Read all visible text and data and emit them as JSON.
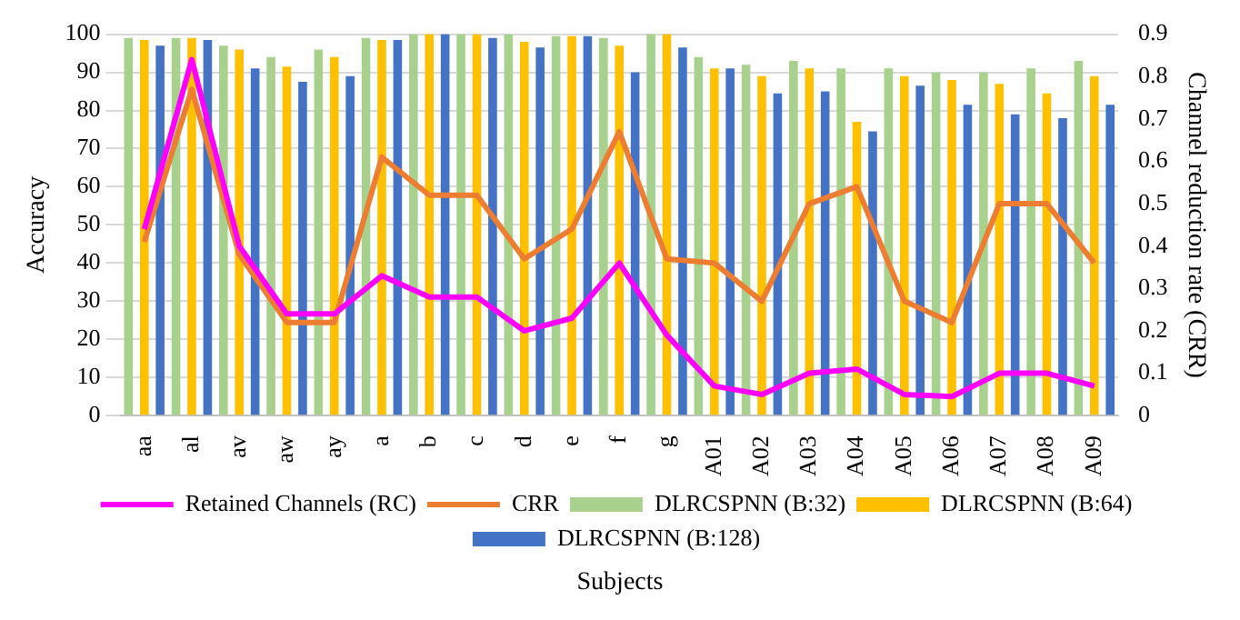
{
  "chart_data": {
    "type": "bar",
    "xlabel": "Subjects",
    "ylabel": "Accuracy",
    "y2label": "Channel reduction rate (CRR)",
    "categories": [
      "aa",
      "al",
      "av",
      "aw",
      "ay",
      "a",
      "b",
      "c",
      "d",
      "e",
      "f",
      "g",
      "A01",
      "A02",
      "A03",
      "A04",
      "A05",
      "A06",
      "A07",
      "A08",
      "A09"
    ],
    "series": [
      {
        "name": "DLRCSPNN (B:32)",
        "color": "#a9d18e",
        "values": [
          99,
          99,
          97,
          94,
          96,
          99,
          100,
          100,
          100,
          99.5,
          99,
          100,
          94,
          92,
          93,
          91,
          91,
          90,
          90,
          91,
          93
        ]
      },
      {
        "name": "DLRCSPNN (B:64)",
        "color": "#ffc000",
        "values": [
          98.5,
          99,
          96,
          91.5,
          94,
          98.5,
          100,
          100,
          98,
          99.5,
          97,
          100,
          91,
          89,
          91,
          77,
          89,
          88,
          87,
          84.5,
          89
        ]
      },
      {
        "name": "DLRCSPNN (B:128)",
        "color": "#4472c4",
        "values": [
          97,
          98.5,
          91,
          87.5,
          89,
          98.5,
          100,
          99,
          96.5,
          99.5,
          90,
          96.5,
          91,
          84.5,
          85,
          74.5,
          86.5,
          81.5,
          79,
          78,
          81.5
        ]
      },
      {
        "name": "Retained Channels (RC)",
        "type": "line",
        "axis": "y2",
        "color": "#ff00ff",
        "values": [
          0.44,
          0.84,
          0.4,
          0.24,
          0.24,
          0.33,
          0.28,
          0.28,
          0.2,
          0.23,
          0.36,
          0.19,
          0.07,
          0.05,
          0.1,
          0.11,
          0.05,
          0.045,
          0.1,
          0.1,
          0.07
        ]
      },
      {
        "name": "CRR",
        "type": "line",
        "axis": "y2",
        "color": "#ed7d31",
        "values": [
          0.41,
          0.77,
          0.38,
          0.22,
          0.22,
          0.61,
          0.52,
          0.52,
          0.37,
          0.44,
          0.67,
          0.37,
          0.36,
          0.27,
          0.5,
          0.54,
          0.27,
          0.22,
          0.5,
          0.5,
          0.36
        ]
      }
    ],
    "ylim": [
      0,
      100
    ],
    "yticks": [
      0,
      10,
      20,
      30,
      40,
      50,
      60,
      70,
      80,
      90,
      100
    ],
    "y2lim": [
      0,
      0.9
    ],
    "y2ticks": [
      0,
      0.1,
      0.2,
      0.3,
      0.4,
      0.5,
      0.6,
      0.7,
      0.8,
      0.9
    ],
    "grid": "y",
    "legend": "bottom",
    "marker": "none",
    "line_style": "solid"
  }
}
